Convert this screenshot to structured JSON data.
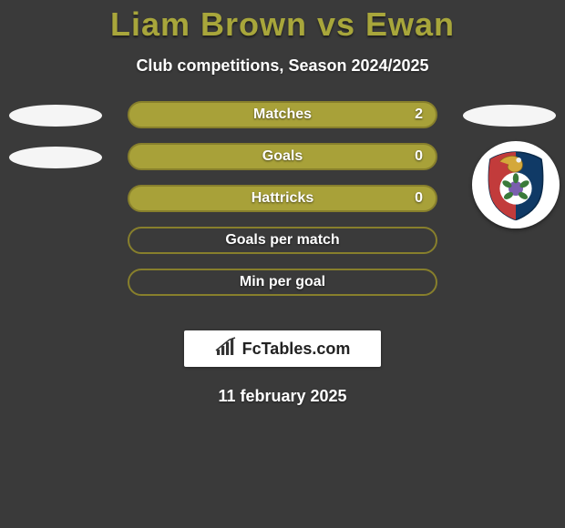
{
  "title_color": "#a8a63b",
  "title": "Liam Brown vs Ewan",
  "subtitle": "Club competitions, Season 2024/2025",
  "bar_fill_color": "#a8a139",
  "bar_border_color": "#877f2c",
  "empty_border_color": "#877f2c",
  "stats": [
    {
      "label": "Matches",
      "value_right": "2",
      "filled": true,
      "left_oval": true,
      "right_oval": true,
      "right_badge": false
    },
    {
      "label": "Goals",
      "value_right": "0",
      "filled": true,
      "left_oval": true,
      "right_oval": false,
      "right_badge": true
    },
    {
      "label": "Hattricks",
      "value_right": "0",
      "filled": true,
      "left_oval": false,
      "right_oval": false,
      "right_badge": false
    },
    {
      "label": "Goals per match",
      "value_right": "",
      "filled": false,
      "left_oval": false,
      "right_oval": false,
      "right_badge": false
    },
    {
      "label": "Min per goal",
      "value_right": "",
      "filled": false,
      "left_oval": false,
      "right_oval": false,
      "right_badge": false
    }
  ],
  "logo_text": "FcTables.com",
  "date": "11 february 2025"
}
